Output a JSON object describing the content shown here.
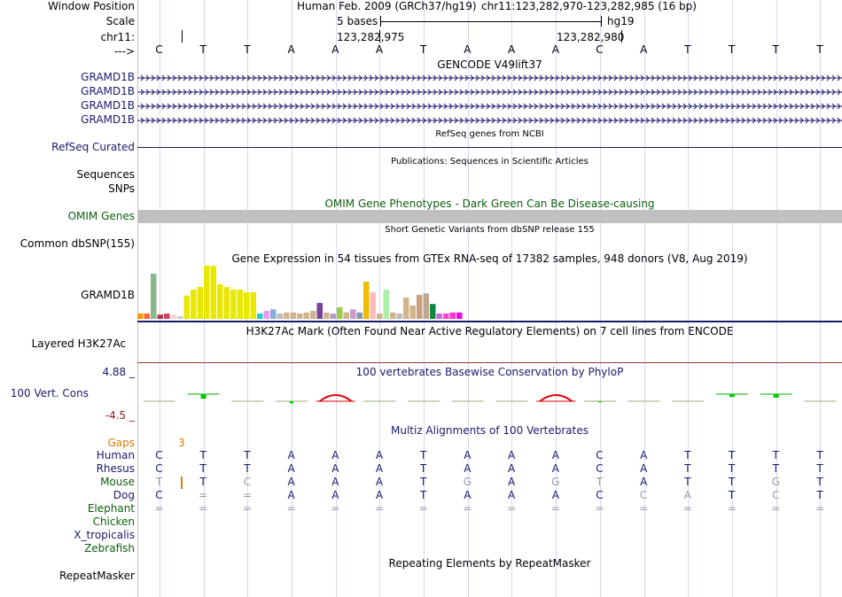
{
  "header": {
    "window_position_label": "Window Position",
    "assembly": "Human Feb. 2009 (GRCh37/hg19)",
    "position": "chr11:123,282,970-123,282,985 (16 bp)",
    "scale_label": "Scale",
    "scale_text": "5 bases",
    "scale_db": "hg19",
    "chrom_label": "chr11:",
    "coord_1": "123,282,975",
    "coord_2": "123,282,980",
    "strand_label": "--->",
    "sequence": [
      "C",
      "T",
      "T",
      "A",
      "A",
      "A",
      "T",
      "A",
      "A",
      "A",
      "C",
      "A",
      "T",
      "T",
      "T",
      "T"
    ]
  },
  "tracks": {
    "gencode_title": "GENCODE V49lift37",
    "gencode_genes": [
      "GRAMD1B",
      "GRAMD1B",
      "GRAMD1B",
      "GRAMD1B"
    ],
    "refseq_label": "RefSeq Curated",
    "refseq_title": "RefSeq genes from NCBI",
    "publications_title": "Publications: Sequences in Scientific Articles",
    "sequences_label": "Sequences",
    "snps_label": "SNPs",
    "omim_title": "OMIM Gene Phenotypes - Dark Green Can Be Disease-causing",
    "omim_label": "OMIM Genes",
    "dbsnp_title": "Short Genetic Variants from dbSNP release 155",
    "dbsnp_label": "Common dbSNP(155)",
    "gtex_title": "Gene Expression in 54 tissues from GTEx RNA-seq of 17382 samples, 948 donors (V8, Aug 2019)",
    "gtex_label": "GRAMD1B",
    "h3k27ac_title": "H3K27Ac Mark (Often Found Near Active Regulatory Elements) on 7 cell lines from ENCODE",
    "h3k27ac_label": "Layered H3K27Ac",
    "phylop_title": "100 vertebrates Basewise Conservation by PhyloP",
    "phylop_label": "100 Vert. Cons",
    "phylop_max": "4.88 _",
    "phylop_min": "-4.5 _",
    "multiz_title": "Multiz Alignments of 100 Vertebrates",
    "gaps_label": "Gaps",
    "gaps_value": "3",
    "repeatmasker_title": "Repeating Elements by RepeatMasker",
    "repeatmasker_label": "RepeatMasker"
  },
  "gtex_values": [
    0.1,
    0.1,
    0.85,
    0.08,
    0.1,
    0.08,
    0.05,
    0.44,
    0.55,
    0.6,
    1.0,
    1.0,
    0.65,
    0.6,
    0.55,
    0.55,
    0.5,
    0.5,
    0.1,
    0.15,
    0.18,
    0.1,
    0.12,
    0.12,
    0.1,
    0.12,
    0.15,
    0.3,
    0.12,
    0.1,
    0.22,
    0.12,
    0.18,
    0.12,
    0.7,
    0.5,
    0.1,
    0.55,
    0.12,
    0.1,
    0.4,
    0.25,
    0.45,
    0.48,
    0.28,
    0.1,
    0.1,
    0.12,
    0.12
  ],
  "gtex_colors": [
    "#ff9900",
    "#ff6633",
    "#88b890",
    "#b3374b",
    "#cc4466",
    "#ffd0d8",
    "#c8c8c8",
    "#e8e800",
    "#e8e800",
    "#e8e800",
    "#e8e800",
    "#e8e800",
    "#e8e800",
    "#e8e800",
    "#e8e800",
    "#e8e800",
    "#e8e800",
    "#e8e800",
    "#22cccc",
    "#ee99ee",
    "#88aadd",
    "#bbbbbb",
    "#d2b48c",
    "#d2b48c",
    "#d2b48c",
    "#d2b48c",
    "#d2b48c",
    "#774499",
    "#d2b48c",
    "#bb99cc",
    "#99cc44",
    "#d2b48c",
    "#cc99cc",
    "#8899aa",
    "#eebb00",
    "#ffbbbb",
    "#d2b48c",
    "#aaeeaa",
    "#d2b48c",
    "#bbbbbb",
    "#d2b48c",
    "#d2b48c",
    "#c8a080",
    "#c0a890",
    "#108844",
    "#cc66ee",
    "#ff44cc",
    "#ff33cc",
    "#ee00ee"
  ],
  "phylop_values": [
    -0.05,
    0.4,
    -0.05,
    -0.2,
    0.5,
    -0.05,
    -0.05,
    -0.05,
    -0.05,
    0.5,
    -0.1,
    -0.05,
    -0.05,
    0.15,
    0.25,
    -0.05
  ],
  "alignments": {
    "species": [
      {
        "name": "Human",
        "color": "navy",
        "seq": [
          "C",
          "T",
          "T",
          "A",
          "A",
          "A",
          "T",
          "A",
          "A",
          "A",
          "C",
          "A",
          "T",
          "T",
          "T",
          "T"
        ],
        "muted": []
      },
      {
        "name": "Rhesus",
        "color": "navy",
        "seq": [
          "C",
          "T",
          "T",
          "A",
          "A",
          "A",
          "T",
          "A",
          "A",
          "A",
          "C",
          "A",
          "T",
          "T",
          "T",
          "T"
        ],
        "muted": []
      },
      {
        "name": "Mouse",
        "color": "green",
        "seq": [
          "T",
          "T",
          "C",
          "A",
          "A",
          "A",
          "T",
          "G",
          "A",
          "G",
          "T",
          "A",
          "T",
          "T",
          "G",
          "T"
        ],
        "muted": [
          0,
          2,
          7,
          9,
          10,
          14
        ]
      },
      {
        "name": "Dog",
        "color": "navy",
        "seq": [
          "C",
          "=",
          "=",
          "A",
          "A",
          "A",
          "T",
          "A",
          "A",
          "A",
          "C",
          "C",
          "A",
          "T",
          "C",
          "T"
        ],
        "muted": [
          1,
          2,
          11,
          12,
          14
        ]
      },
      {
        "name": "Elephant",
        "color": "green",
        "seq": [
          "=",
          "=",
          "=",
          "=",
          "=",
          "=",
          "=",
          "=",
          "=",
          "=",
          "=",
          "=",
          "=",
          "=",
          "=",
          "="
        ],
        "muted": [
          0,
          1,
          2,
          3,
          4,
          5,
          6,
          7,
          8,
          9,
          10,
          11,
          12,
          13,
          14,
          15
        ]
      },
      {
        "name": "Chicken",
        "color": "green",
        "seq": [],
        "muted": []
      },
      {
        "name": "X_tropicalis",
        "color": "navy",
        "seq": [],
        "muted": []
      },
      {
        "name": "Zebrafish",
        "color": "green",
        "seq": [],
        "muted": []
      }
    ]
  },
  "colors": {
    "navy": "#1a1a6e",
    "green": "#0b5e0b",
    "gap": "#e07b00",
    "omim": "#c0c0c0",
    "phylop_pos": "#00c800",
    "phylop_neg": "#e00000"
  }
}
